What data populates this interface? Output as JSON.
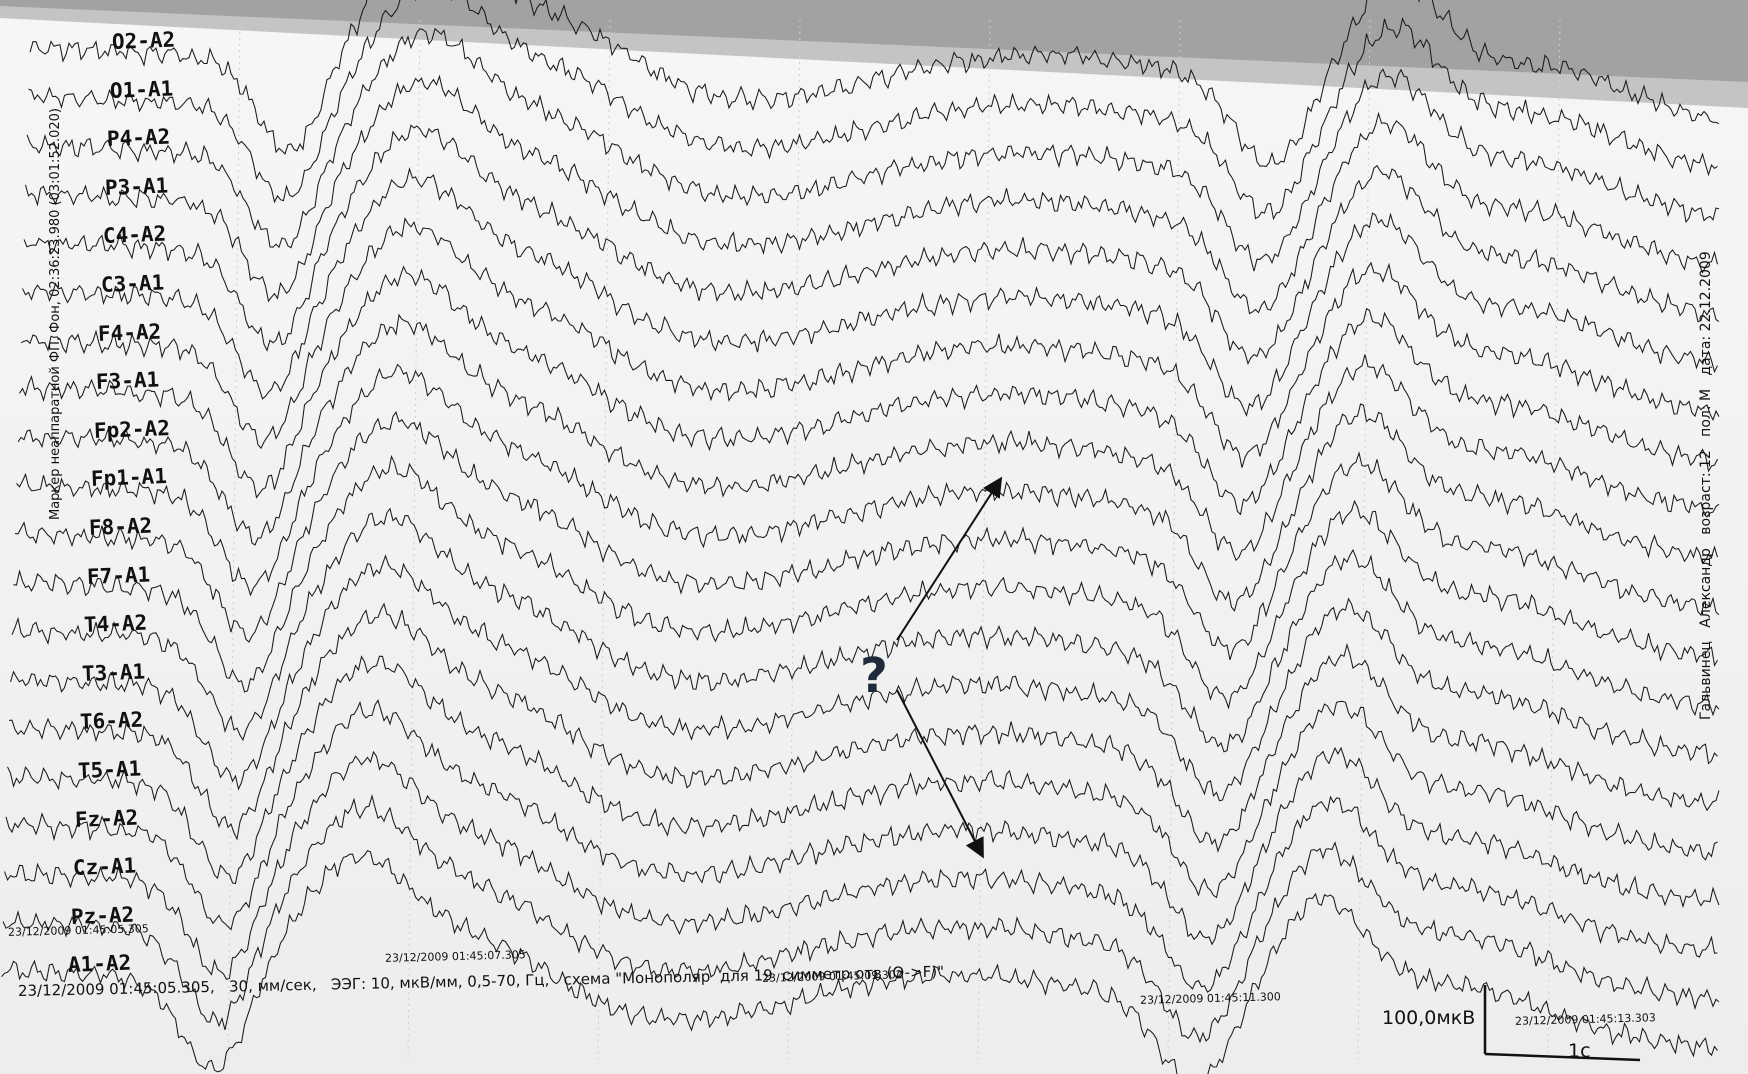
{
  "channels": [
    "O2-A2",
    "O1-A1",
    "P4-A2",
    "P3-A1",
    "C4-A2",
    "C3-A1",
    "F4-A2",
    "F3-A1",
    "Fp2-A2",
    "Fp1-A1",
    "F8-A2",
    "F7-A1",
    "T4-A2",
    "T3-A1",
    "T6-A2",
    "T5-A1",
    "Fz-A2",
    "Cz-A1",
    "Pz-A2",
    "A1-A2"
  ],
  "timestamps": [
    "23/12/2009 01:45:05.305",
    "23/12/2009 01:45:07.305",
    "23/12/2009 01:45:09.302",
    "23/12/2009 01:45:11.300",
    "23/12/2009 01:45:13.303"
  ],
  "footer_text": "23/12/2009 01:45:05.305,   30, мм/сек,   ЭЭГ: 10, мкВ/мм, 0,5-70, Гц,   схема \"Монополяр  для 19  симметр отв (O->F)\"",
  "marker_text": "Маркер неаппаратной ФП, Фон,  02:36:23.980 (03:01:52.020)",
  "patient_text": "Гальвинец   Александр   возраст: 12   пол: М   дата: 22.12.2009",
  "annotation_symbol": "?",
  "scale_amplitude": "100,0мкВ",
  "scale_time": "1с",
  "colors": {
    "trace": "#1a1a1a",
    "paper": "#f2f2f2",
    "grid": "#cfcfcf",
    "question": "#1f2a3a"
  }
}
